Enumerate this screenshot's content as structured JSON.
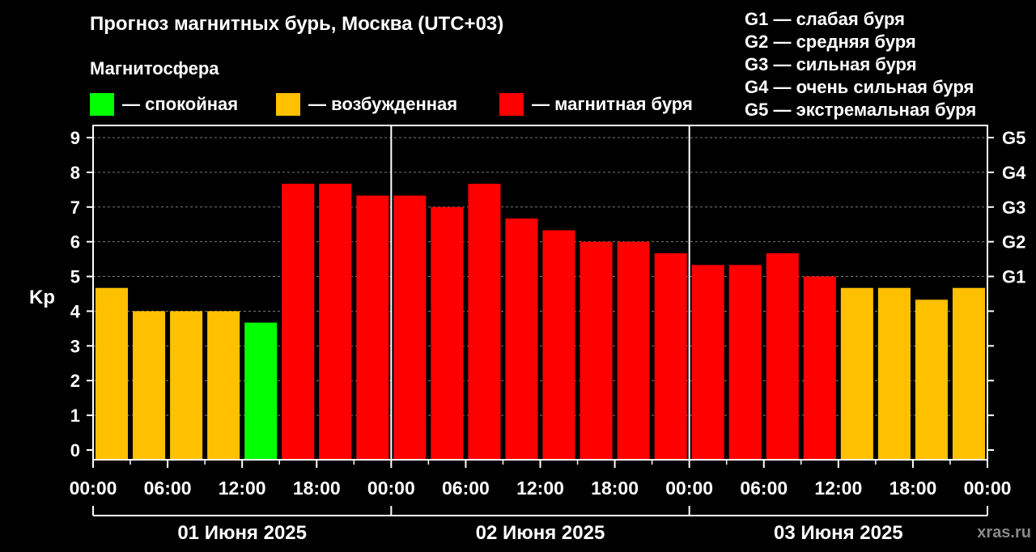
{
  "title": "Прогноз магнитных бурь, Москва (UTC+03)",
  "subtitle": "Магнитосфера",
  "legend": [
    {
      "label": "— спокойная",
      "color": "#00ff00"
    },
    {
      "label": "— возбужденная",
      "color": "#ffc000"
    },
    {
      "label": "— магнитная буря",
      "color": "#ff0000"
    }
  ],
  "g_scale": [
    "G1 — слабая буря",
    "G2 — средняя буря",
    "G3 — сильная буря",
    "G4 — очень сильная буря",
    "G5 — экстремальная буря"
  ],
  "watermark": "xras.ru",
  "chart_data": {
    "type": "bar",
    "ylabel": "Kp",
    "ylim": [
      0,
      9
    ],
    "yticks": [
      "0",
      "1",
      "2",
      "3",
      "4",
      "5",
      "6",
      "7",
      "8",
      "9"
    ],
    "right_ticks": [
      {
        "value": 5,
        "label": "G1"
      },
      {
        "value": 6,
        "label": "G2"
      },
      {
        "value": 7,
        "label": "G3"
      },
      {
        "value": 8,
        "label": "G4"
      },
      {
        "value": 9,
        "label": "G5"
      }
    ],
    "xticks": [
      "00:00",
      "06:00",
      "12:00",
      "18:00",
      "00:00",
      "06:00",
      "12:00",
      "18:00",
      "00:00",
      "06:00",
      "12:00",
      "18:00",
      "00:00"
    ],
    "days": [
      "01 Июня 2025",
      "02 Июня 2025",
      "03 Июня 2025"
    ],
    "bars_per_day": 8,
    "values": [
      4.67,
      4.0,
      4.0,
      4.0,
      3.67,
      7.67,
      7.67,
      7.33,
      7.33,
      7.0,
      7.67,
      6.67,
      6.33,
      6.0,
      6.0,
      5.67,
      5.33,
      5.33,
      5.67,
      5.0,
      4.67,
      4.67,
      4.33,
      4.67
    ],
    "grid": true,
    "legend_position": "top"
  }
}
